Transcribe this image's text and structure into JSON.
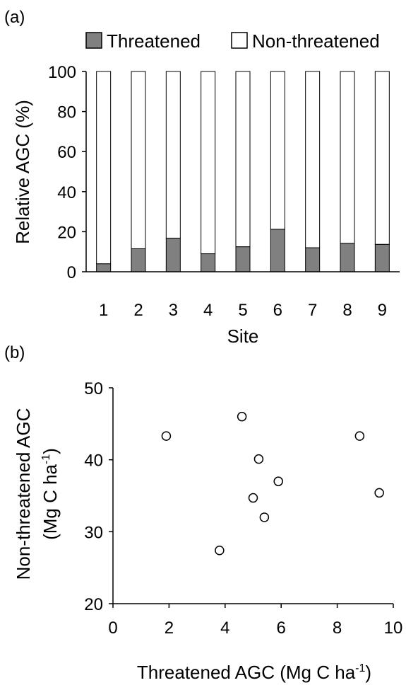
{
  "chart_data": [
    {
      "panel_label": "(a)",
      "type": "bar",
      "stacked": true,
      "categories": [
        "1",
        "2",
        "3",
        "4",
        "5",
        "6",
        "7",
        "8",
        "9"
      ],
      "series": [
        {
          "name": "Threatened",
          "color": "#808080",
          "values": [
            4,
            11.5,
            16.8,
            9,
            12.5,
            21.2,
            12,
            14.2,
            13.7
          ]
        },
        {
          "name": "Non-threatened",
          "color": "#ffffff",
          "values": [
            96,
            88.5,
            83.2,
            91,
            87.5,
            78.8,
            88,
            85.8,
            86.3
          ]
        }
      ],
      "xlabel": "Site",
      "ylabel": "Relative AGC (%)",
      "ylim": [
        0,
        100
      ],
      "yticks": [
        "0",
        "20",
        "40",
        "60",
        "80",
        "100"
      ],
      "legend": "top",
      "grid": false
    },
    {
      "panel_label": "(b)",
      "type": "scatter",
      "points": [
        {
          "x": 1.9,
          "y": 43.3
        },
        {
          "x": 3.8,
          "y": 27.4
        },
        {
          "x": 4.6,
          "y": 46.0
        },
        {
          "x": 5.0,
          "y": 34.7
        },
        {
          "x": 5.2,
          "y": 40.1
        },
        {
          "x": 5.4,
          "y": 32.0
        },
        {
          "x": 5.9,
          "y": 37.0
        },
        {
          "x": 8.8,
          "y": 43.3
        },
        {
          "x": 9.5,
          "y": 35.4
        }
      ],
      "xlabel": "Threatened AGC (Mg C ha",
      "xlabel_sup": "-1",
      "xlabel_end": ")",
      "ylabel_line1": "Non-threatened AGC",
      "ylabel_line2": "(Mg C ha",
      "ylabel_sup": "-1",
      "ylabel_end": ")",
      "xlim": [
        0,
        10
      ],
      "ylim": [
        20,
        50
      ],
      "xticks": [
        "0",
        "2",
        "4",
        "6",
        "8",
        "10"
      ],
      "yticks": [
        "20",
        "30",
        "40",
        "50"
      ],
      "grid": false
    }
  ]
}
